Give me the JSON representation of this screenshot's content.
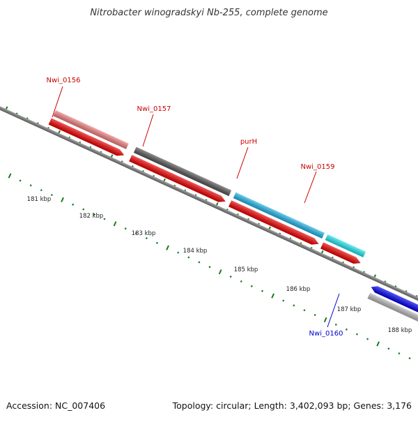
{
  "title": "Nitrobacter winogradskyi Nb-255, complete genome",
  "footer": {
    "accession": "Accession: NC_007406",
    "summary": "Topology: circular; Length: 3,402,093 bp; Genes: 3,176"
  },
  "kbp_labels": [
    "181 kbp",
    "182 kbp",
    "183 kbp",
    "184 kbp",
    "185 kbp",
    "186 kbp",
    "187 kbp",
    "188 kbp"
  ],
  "gene_labels": [
    {
      "name": "Nwi_0156",
      "color": "#cc0000"
    },
    {
      "name": "Nwi_0157",
      "color": "#cc0000"
    },
    {
      "name": "purH",
      "color": "#cc0000"
    },
    {
      "name": "Nwi_0159",
      "color": "#cc0000"
    },
    {
      "name": "Nwi_0160",
      "color": "#0000cc"
    }
  ],
  "colors": {
    "backbone": "#7a7a7a",
    "cds_strand": "#ee0000",
    "tick": "#1a7a1a",
    "gene_Nwi_0156": "#f08080",
    "gene_Nwi_0157": "#555555",
    "gene_purH": "#22b4e6",
    "gene_Nwi_0159": "#22e6ee",
    "gene_Nwi_0160": "#0000ee",
    "gene_Nwi_0160_neighbor": "#b8b8b8",
    "gene_offscreen": "#4a84b4"
  }
}
